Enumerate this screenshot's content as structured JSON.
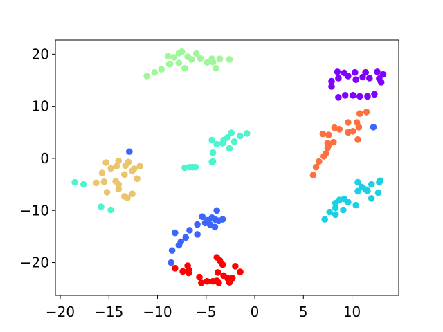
{
  "chart_data": {
    "type": "scatter",
    "title": "",
    "xlabel": "",
    "ylabel": "",
    "xlim": [
      -20.5,
      14.8
    ],
    "ylim": [
      -26.3,
      22.7
    ],
    "xticks": [
      -20,
      -15,
      -10,
      -5,
      0,
      5,
      10
    ],
    "yticks": [
      -20,
      -10,
      0,
      10,
      20
    ],
    "tick_labels": {
      "x": [
        "−20",
        "−15",
        "−10",
        "−5",
        "0",
        "5",
        "10"
      ],
      "y": [
        "−20",
        "−10",
        "0",
        "10",
        "20"
      ]
    },
    "grid": false,
    "legend": false,
    "series": [
      {
        "color": "#8000ff",
        "points": [
          [
            8.5,
            16.6
          ],
          [
            9.2,
            16.4
          ],
          [
            10.3,
            16.5
          ],
          [
            11.4,
            16.5
          ],
          [
            12.6,
            16.6
          ],
          [
            13.2,
            16.1
          ],
          [
            7.9,
            14.8
          ],
          [
            7.9,
            13.8
          ],
          [
            8.6,
            15.4
          ],
          [
            9.6,
            15.8
          ],
          [
            10.4,
            15.1
          ],
          [
            11.1,
            15.6
          ],
          [
            11.8,
            15.4
          ],
          [
            12.8,
            15.3
          ],
          [
            13.0,
            14.6
          ],
          [
            8.6,
            11.7
          ],
          [
            9.3,
            12.1
          ],
          [
            10.1,
            12.1
          ],
          [
            10.8,
            11.9
          ],
          [
            11.6,
            11.9
          ],
          [
            12.3,
            12.3
          ]
        ]
      },
      {
        "color": "#3c66f9",
        "points": [
          [
            -12.9,
            1.3
          ],
          [
            12.2,
            6.0
          ],
          [
            -8.2,
            -14.3
          ],
          [
            -7.6,
            -16.0
          ],
          [
            -7.8,
            -16.7
          ],
          [
            -8.5,
            -17.7
          ],
          [
            -7.1,
            -15.2
          ],
          [
            -6.7,
            -13.8
          ],
          [
            -5.9,
            -12.7
          ],
          [
            -5.4,
            -11.2
          ],
          [
            -4.9,
            -11.9
          ],
          [
            -4.4,
            -11.4
          ],
          [
            -4.0,
            -11.8
          ],
          [
            -3.7,
            -12.0
          ],
          [
            -3.3,
            -11.7
          ],
          [
            -5.1,
            -12.4
          ],
          [
            -5.9,
            -14.6
          ],
          [
            -4.6,
            -12.7
          ],
          [
            -3.9,
            -10.0
          ],
          [
            -4.1,
            -13.2
          ],
          [
            -8.6,
            -20.0
          ]
        ]
      },
      {
        "color": "#1ccfe3",
        "points": [
          [
            10.6,
            -4.6
          ],
          [
            11.0,
            -5.5
          ],
          [
            11.6,
            -6.2
          ],
          [
            12.0,
            -5.0
          ],
          [
            12.9,
            -4.3
          ],
          [
            12.8,
            -4.6
          ],
          [
            11.4,
            -6.0
          ],
          [
            12.0,
            -7.7
          ],
          [
            12.7,
            -6.6
          ],
          [
            10.4,
            -9.0
          ],
          [
            9.6,
            -8.4
          ],
          [
            9.1,
            -9.9
          ],
          [
            9.2,
            -7.8
          ],
          [
            8.7,
            -8.0
          ],
          [
            8.3,
            -8.6
          ],
          [
            8.3,
            -9.5
          ],
          [
            7.7,
            -10.3
          ],
          [
            7.2,
            -11.7
          ],
          [
            8.3,
            -10.8
          ],
          [
            10.6,
            -6.3
          ]
        ]
      },
      {
        "color": "#4df5cf",
        "points": [
          [
            -4.4,
            3.5
          ],
          [
            -3.9,
            2.7
          ],
          [
            -3.2,
            3.5
          ],
          [
            -2.8,
            4.0
          ],
          [
            -2.1,
            3.2
          ],
          [
            -1.5,
            4.3
          ],
          [
            -0.8,
            4.8
          ],
          [
            -2.4,
            4.9
          ],
          [
            -3.3,
            2.9
          ],
          [
            -2.6,
            1.9
          ],
          [
            -4.3,
            1.1
          ],
          [
            -4.3,
            -0.6
          ],
          [
            -4.4,
            -0.7
          ],
          [
            -7.2,
            -1.8
          ],
          [
            -6.7,
            -1.7
          ],
          [
            -6.4,
            -1.7
          ],
          [
            -6.1,
            -1.7
          ],
          [
            -18.5,
            -4.6
          ],
          [
            -17.6,
            -5.0
          ],
          [
            -15.8,
            -9.3
          ],
          [
            -14.8,
            -9.9
          ]
        ]
      },
      {
        "color": "#a0f79a",
        "points": [
          [
            -8.9,
            19.6
          ],
          [
            -8.3,
            19.4
          ],
          [
            -7.8,
            20.2
          ],
          [
            -7.5,
            20.5
          ],
          [
            -6.9,
            19.5
          ],
          [
            -6.5,
            19.0
          ],
          [
            -6.0,
            20.1
          ],
          [
            -5.6,
            19.2
          ],
          [
            -4.9,
            18.4
          ],
          [
            -4.3,
            18.5
          ],
          [
            -4.4,
            19.1
          ],
          [
            -3.6,
            19.1
          ],
          [
            -2.6,
            19.0
          ],
          [
            -8.8,
            18.1
          ],
          [
            -8.7,
            18.1
          ],
          [
            -7.8,
            18.3
          ],
          [
            -7.2,
            17.3
          ],
          [
            -4.0,
            17.3
          ],
          [
            -9.6,
            17.1
          ],
          [
            -10.3,
            16.5
          ],
          [
            -11.1,
            15.8
          ]
        ]
      },
      {
        "color": "#e9c66d",
        "points": [
          [
            -15.3,
            -0.8
          ],
          [
            -14.8,
            -1.9
          ],
          [
            -14.2,
            -1.5
          ],
          [
            -14.0,
            -0.5
          ],
          [
            -13.3,
            -1.4
          ],
          [
            -13.0,
            -0.7
          ],
          [
            -12.4,
            -2.0
          ],
          [
            -11.8,
            -1.5
          ],
          [
            -15.7,
            -2.8
          ],
          [
            -14.3,
            -4.4
          ],
          [
            -13.4,
            -3.1
          ],
          [
            -12.6,
            -2.4
          ],
          [
            -12.1,
            -3.9
          ],
          [
            -16.3,
            -4.7
          ],
          [
            -15.5,
            -4.5
          ],
          [
            -14.0,
            -5.0
          ],
          [
            -14.0,
            -5.9
          ],
          [
            -15.2,
            -6.5
          ],
          [
            -13.4,
            -7.3
          ],
          [
            -13.1,
            -7.6
          ],
          [
            -12.6,
            -6.8
          ]
        ]
      },
      {
        "color": "#ff7040",
        "points": [
          [
            6.0,
            -3.2
          ],
          [
            6.3,
            -1.7
          ],
          [
            6.6,
            -0.6
          ],
          [
            7.1,
            0.4
          ],
          [
            7.3,
            0.9
          ],
          [
            7.5,
            2.0
          ],
          [
            7.6,
            2.5
          ],
          [
            7.5,
            2.9
          ],
          [
            8.1,
            3.1
          ],
          [
            7.0,
            4.7
          ],
          [
            7.6,
            4.5
          ],
          [
            8.2,
            5.9
          ],
          [
            8.7,
            5.6
          ],
          [
            9.6,
            5.0
          ],
          [
            9.6,
            6.9
          ],
          [
            10.1,
            5.2
          ],
          [
            10.5,
            6.9
          ],
          [
            10.7,
            6.0
          ],
          [
            10.6,
            3.6
          ],
          [
            10.8,
            8.6
          ],
          [
            11.5,
            8.9
          ]
        ]
      },
      {
        "color": "#ff0000",
        "points": [
          [
            -8.2,
            -21.1
          ],
          [
            -7.4,
            -21.7
          ],
          [
            -6.9,
            -20.6
          ],
          [
            -6.8,
            -22.0
          ],
          [
            -5.7,
            -22.8
          ],
          [
            -5.5,
            -23.9
          ],
          [
            -4.9,
            -23.6
          ],
          [
            -4.3,
            -23.6
          ],
          [
            -3.9,
            -23.5
          ],
          [
            -3.7,
            -23.9
          ],
          [
            -3.2,
            -22.5
          ],
          [
            -2.8,
            -23.0
          ],
          [
            -2.6,
            -23.8
          ],
          [
            -2.3,
            -23.0
          ],
          [
            -2.0,
            -20.7
          ],
          [
            -1.5,
            -21.8
          ],
          [
            -3.3,
            -20.4
          ],
          [
            -3.6,
            -19.6
          ],
          [
            -3.9,
            -19.0
          ],
          [
            -3.8,
            -21.9
          ],
          [
            -6.8,
            -21.4
          ]
        ]
      }
    ]
  }
}
